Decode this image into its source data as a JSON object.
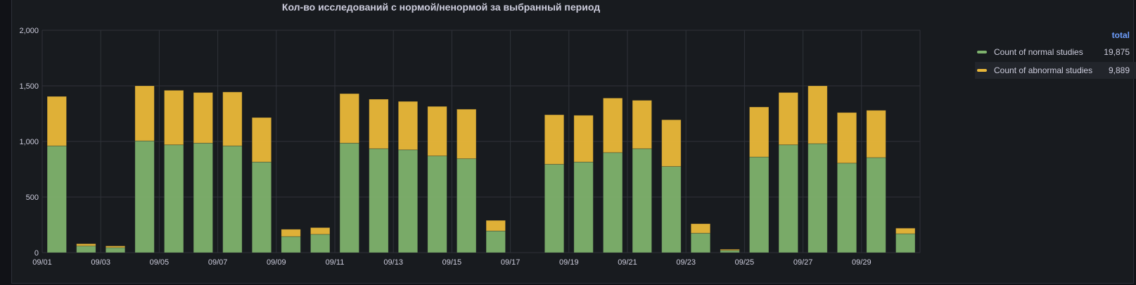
{
  "panel": {
    "title": "Кол-во исследований с нормой/ненормой за выбранный период"
  },
  "legend": {
    "header": "total",
    "items": [
      {
        "label": "Count of normal studies",
        "total": "19,875",
        "color": "#7eb26d"
      },
      {
        "label": "Count of abnormal studies",
        "total": "9,889",
        "color": "#eab839"
      }
    ]
  },
  "chart_data": {
    "type": "bar",
    "stacked": true,
    "title": "Кол-во исследований с нормой/ненормой за выбранный период",
    "xlabel": "",
    "ylabel": "",
    "ylim": [
      0,
      2000
    ],
    "yticks": [
      0,
      500,
      1000,
      1500,
      2000
    ],
    "ytick_labels": [
      "0",
      "500",
      "1,000",
      "1,500",
      "2,000"
    ],
    "xtick_labels": [
      "09/01",
      "09/03",
      "09/05",
      "09/07",
      "09/09",
      "09/11",
      "09/13",
      "09/15",
      "09/17",
      "09/19",
      "09/21",
      "09/23",
      "09/25",
      "09/27",
      "09/29"
    ],
    "grid": true,
    "legend_position": "right",
    "categories": [
      "09/01",
      "09/02",
      "09/03",
      "09/04",
      "09/05",
      "09/06",
      "09/07",
      "09/08",
      "09/09",
      "09/10",
      "09/11",
      "09/12",
      "09/13",
      "09/14",
      "09/15",
      "09/16",
      "09/17",
      "09/18",
      "09/19",
      "09/20",
      "09/21",
      "09/22",
      "09/23",
      "09/24",
      "09/25",
      "09/26",
      "09/27",
      "09/28",
      "09/29",
      "09/30"
    ],
    "series": [
      {
        "name": "Count of normal studies",
        "color": "#7eb26d",
        "values": [
          960,
          60,
          45,
          1005,
          970,
          985,
          960,
          815,
          145,
          165,
          985,
          935,
          925,
          870,
          845,
          195,
          0,
          795,
          815,
          900,
          935,
          775,
          175,
          20,
          860,
          970,
          980,
          805,
          855,
          170
        ]
      },
      {
        "name": "Count of abnormal studies",
        "color": "#eab839",
        "values": [
          445,
          20,
          15,
          495,
          490,
          455,
          485,
          400,
          65,
          60,
          445,
          445,
          435,
          445,
          445,
          95,
          0,
          445,
          420,
          490,
          435,
          420,
          85,
          10,
          450,
          470,
          520,
          455,
          425,
          50
        ]
      }
    ]
  }
}
